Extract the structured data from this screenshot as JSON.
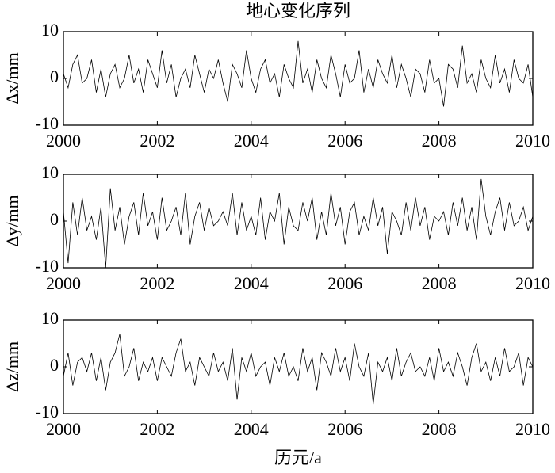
{
  "chart_data": [
    {
      "type": "line",
      "title": "地心变化序列",
      "ylabel": "Δx/mm",
      "x": [
        2000,
        2000.1,
        2000.2,
        2000.3,
        2000.4,
        2000.5,
        2000.6,
        2000.7,
        2000.8,
        2000.9,
        2001,
        2001.1,
        2001.2,
        2001.3,
        2001.4,
        2001.5,
        2001.6,
        2001.7,
        2001.8,
        2001.9,
        2002,
        2002.1,
        2002.2,
        2002.3,
        2002.4,
        2002.5,
        2002.6,
        2002.7,
        2002.8,
        2002.9,
        2003,
        2003.1,
        2003.2,
        2003.3,
        2003.4,
        2003.5,
        2003.6,
        2003.7,
        2003.8,
        2003.9,
        2004,
        2004.1,
        2004.2,
        2004.3,
        2004.4,
        2004.5,
        2004.6,
        2004.7,
        2004.8,
        2004.9,
        2005,
        2005.1,
        2005.2,
        2005.3,
        2005.4,
        2005.5,
        2005.6,
        2005.7,
        2005.8,
        2005.9,
        2006,
        2006.1,
        2006.2,
        2006.3,
        2006.4,
        2006.5,
        2006.6,
        2006.7,
        2006.8,
        2006.9,
        2007,
        2007.1,
        2007.2,
        2007.3,
        2007.4,
        2007.5,
        2007.6,
        2007.7,
        2007.8,
        2007.9,
        2008,
        2008.1,
        2008.2,
        2008.3,
        2008.4,
        2008.5,
        2008.6,
        2008.7,
        2008.8,
        2008.9,
        2009,
        2009.1,
        2009.2,
        2009.3,
        2009.4,
        2009.5,
        2009.6,
        2009.7,
        2009.8,
        2009.9,
        2010
      ],
      "series": [
        {
          "color": "#000000",
          "values": [
            1,
            -2,
            3,
            5,
            -1,
            0,
            4,
            -3,
            2,
            -4,
            1,
            3,
            -2,
            0,
            5,
            -1,
            2,
            -3,
            4,
            1,
            -2,
            6,
            -1,
            3,
            -4,
            0,
            2,
            -2,
            5,
            1,
            -3,
            2,
            0,
            4,
            -1,
            -5,
            3,
            1,
            -2,
            6,
            0,
            -3,
            2,
            4,
            -1,
            1,
            -4,
            3,
            0,
            -2,
            8,
            -1,
            2,
            -3,
            4,
            0,
            -2,
            5,
            1,
            -4,
            3,
            -1,
            0,
            6,
            -3,
            2,
            -2,
            4,
            1,
            -1,
            5,
            -2,
            3,
            0,
            -4,
            2,
            1,
            -3,
            4,
            -1,
            0,
            -6,
            3,
            2,
            -2,
            7,
            -1,
            1,
            -3,
            4,
            0,
            -2,
            5,
            -1,
            2,
            -3,
            4,
            0,
            -1,
            3,
            -4
          ]
        }
      ],
      "xlim": [
        2000,
        2010
      ],
      "xticks": [
        2000,
        2002,
        2004,
        2006,
        2008,
        2010
      ],
      "ylim": [
        -10,
        10
      ],
      "yticks": [
        -10,
        0,
        10
      ]
    },
    {
      "type": "line",
      "ylabel": "Δy/mm",
      "x": [
        2000,
        2000.1,
        2000.2,
        2000.3,
        2000.4,
        2000.5,
        2000.6,
        2000.7,
        2000.8,
        2000.9,
        2001,
        2001.1,
        2001.2,
        2001.3,
        2001.4,
        2001.5,
        2001.6,
        2001.7,
        2001.8,
        2001.9,
        2002,
        2002.1,
        2002.2,
        2002.3,
        2002.4,
        2002.5,
        2002.6,
        2002.7,
        2002.8,
        2002.9,
        2003,
        2003.1,
        2003.2,
        2003.3,
        2003.4,
        2003.5,
        2003.6,
        2003.7,
        2003.8,
        2003.9,
        2004,
        2004.1,
        2004.2,
        2004.3,
        2004.4,
        2004.5,
        2004.6,
        2004.7,
        2004.8,
        2004.9,
        2005,
        2005.1,
        2005.2,
        2005.3,
        2005.4,
        2005.5,
        2005.6,
        2005.7,
        2005.8,
        2005.9,
        2006,
        2006.1,
        2006.2,
        2006.3,
        2006.4,
        2006.5,
        2006.6,
        2006.7,
        2006.8,
        2006.9,
        2007,
        2007.1,
        2007.2,
        2007.3,
        2007.4,
        2007.5,
        2007.6,
        2007.7,
        2007.8,
        2007.9,
        2008,
        2008.1,
        2008.2,
        2008.3,
        2008.4,
        2008.5,
        2008.6,
        2008.7,
        2008.8,
        2008.9,
        2009,
        2009.1,
        2009.2,
        2009.3,
        2009.4,
        2009.5,
        2009.6,
        2009.7,
        2009.8,
        2009.9,
        2010
      ],
      "series": [
        {
          "color": "#000000",
          "values": [
            2,
            -9,
            4,
            -3,
            5,
            -2,
            1,
            -4,
            3,
            -10,
            7,
            -2,
            3,
            -5,
            1,
            4,
            -3,
            6,
            -1,
            2,
            -4,
            5,
            -2,
            0,
            3,
            -3,
            6,
            -5,
            1,
            4,
            -2,
            3,
            -1,
            0,
            2,
            -1,
            6,
            -3,
            4,
            -2,
            1,
            -3,
            5,
            -4,
            2,
            0,
            6,
            -5,
            3,
            -1,
            -2,
            4,
            0,
            5,
            -4,
            2,
            -3,
            6,
            -1,
            3,
            -5,
            2,
            4,
            -3,
            1,
            -2,
            5,
            -1,
            3,
            -7,
            2,
            0,
            -3,
            4,
            -2,
            5,
            -1,
            3,
            -4,
            1,
            0,
            2,
            -3,
            4,
            -1,
            5,
            -2,
            3,
            -4,
            9,
            1,
            -3,
            2,
            5,
            -2,
            4,
            -1,
            0,
            3,
            -2,
            1
          ]
        }
      ],
      "xlim": [
        2000,
        2010
      ],
      "xticks": [
        2000,
        2002,
        2004,
        2006,
        2008,
        2010
      ],
      "ylim": [
        -10,
        10
      ],
      "yticks": [
        -10,
        0,
        10
      ]
    },
    {
      "type": "line",
      "ylabel": "Δz/mm",
      "xlabel": "历元/a",
      "x": [
        2000,
        2000.1,
        2000.2,
        2000.3,
        2000.4,
        2000.5,
        2000.6,
        2000.7,
        2000.8,
        2000.9,
        2001,
        2001.1,
        2001.2,
        2001.3,
        2001.4,
        2001.5,
        2001.6,
        2001.7,
        2001.8,
        2001.9,
        2002,
        2002.1,
        2002.2,
        2002.3,
        2002.4,
        2002.5,
        2002.6,
        2002.7,
        2002.8,
        2002.9,
        2003,
        2003.1,
        2003.2,
        2003.3,
        2003.4,
        2003.5,
        2003.6,
        2003.7,
        2003.8,
        2003.9,
        2004,
        2004.1,
        2004.2,
        2004.3,
        2004.4,
        2004.5,
        2004.6,
        2004.7,
        2004.8,
        2004.9,
        2005,
        2005.1,
        2005.2,
        2005.3,
        2005.4,
        2005.5,
        2005.6,
        2005.7,
        2005.8,
        2005.9,
        2006,
        2006.1,
        2006.2,
        2006.3,
        2006.4,
        2006.5,
        2006.6,
        2006.7,
        2006.8,
        2006.9,
        2007,
        2007.1,
        2007.2,
        2007.3,
        2007.4,
        2007.5,
        2007.6,
        2007.7,
        2007.8,
        2007.9,
        2008,
        2008.1,
        2008.2,
        2008.3,
        2008.4,
        2008.5,
        2008.6,
        2008.7,
        2008.8,
        2008.9,
        2009,
        2009.1,
        2009.2,
        2009.3,
        2009.4,
        2009.5,
        2009.6,
        2009.7,
        2009.8,
        2009.9,
        2010
      ],
      "series": [
        {
          "color": "#000000",
          "values": [
            -2,
            3,
            -4,
            1,
            2,
            -1,
            3,
            -3,
            2,
            -5,
            1,
            3,
            7,
            -2,
            0,
            4,
            -3,
            1,
            -1,
            2,
            -3,
            2,
            0,
            -2,
            3,
            6,
            -1,
            1,
            -4,
            2,
            0,
            -2,
            3,
            -1,
            1,
            -3,
            4,
            -7,
            2,
            -1,
            3,
            -2,
            0,
            1,
            -4,
            2,
            -1,
            3,
            -2,
            0,
            -3,
            4,
            -1,
            2,
            -5,
            3,
            1,
            -2,
            4,
            -1,
            2,
            -3,
            5,
            0,
            -2,
            3,
            -8,
            1,
            -1,
            2,
            -3,
            4,
            -2,
            1,
            3,
            -1,
            0,
            -2,
            2,
            -3,
            4,
            -1,
            1,
            -2,
            3,
            0,
            -4,
            2,
            5,
            -1,
            1,
            -3,
            2,
            -2,
            4,
            -1,
            0,
            3,
            -4,
            2,
            0
          ]
        }
      ],
      "xlim": [
        2000,
        2010
      ],
      "xticks": [
        2000,
        2002,
        2004,
        2006,
        2008,
        2010
      ],
      "ylim": [
        -10,
        10
      ],
      "yticks": [
        -10,
        0,
        10
      ]
    }
  ]
}
